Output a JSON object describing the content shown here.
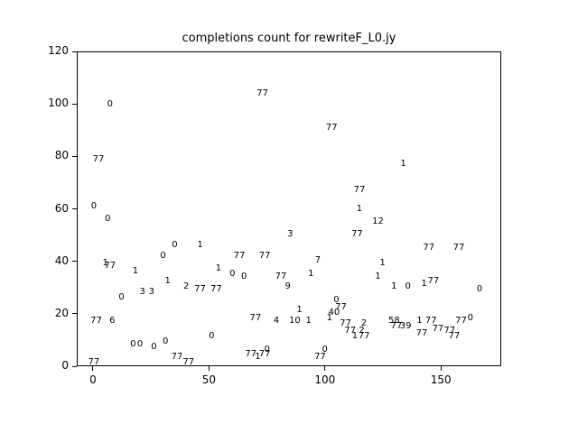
{
  "chart_data": {
    "type": "scatter",
    "title": "completions count for rewriteF_L0.jy",
    "xlabel": "",
    "ylabel": "",
    "marker": "text-label",
    "grid": false,
    "legend": "none",
    "xlim": [
      -7,
      176
    ],
    "ylim": [
      0,
      120
    ],
    "xticks": [
      0,
      50,
      100,
      150
    ],
    "yticks": [
      0,
      20,
      40,
      60,
      80,
      100,
      120
    ],
    "colors": {
      "background": "#ffffff",
      "axes": "#000000",
      "text": "#000000"
    },
    "points": [
      {
        "x": 0,
        "y": 61,
        "label": "0"
      },
      {
        "x": 2,
        "y": 79,
        "label": "77"
      },
      {
        "x": 5,
        "y": 39,
        "label": "1"
      },
      {
        "x": 7,
        "y": 38,
        "label": "77"
      },
      {
        "x": 6,
        "y": 56,
        "label": "0"
      },
      {
        "x": 7,
        "y": 100,
        "label": "0"
      },
      {
        "x": 1,
        "y": 17,
        "label": "77"
      },
      {
        "x": 8,
        "y": 17,
        "label": "6"
      },
      {
        "x": 12,
        "y": 26,
        "label": "0"
      },
      {
        "x": 0,
        "y": 1,
        "label": "77"
      },
      {
        "x": 18,
        "y": 36,
        "label": "1"
      },
      {
        "x": 21,
        "y": 28,
        "label": "3"
      },
      {
        "x": 25,
        "y": 28,
        "label": "3"
      },
      {
        "x": 17,
        "y": 8,
        "label": "0"
      },
      {
        "x": 20,
        "y": 8,
        "label": "0"
      },
      {
        "x": 26,
        "y": 7,
        "label": "0"
      },
      {
        "x": 31,
        "y": 9,
        "label": "0"
      },
      {
        "x": 30,
        "y": 42,
        "label": "0"
      },
      {
        "x": 32,
        "y": 32,
        "label": "1"
      },
      {
        "x": 35,
        "y": 46,
        "label": "0"
      },
      {
        "x": 36,
        "y": 3,
        "label": "77"
      },
      {
        "x": 41,
        "y": 1,
        "label": "77"
      },
      {
        "x": 40,
        "y": 30,
        "label": "2"
      },
      {
        "x": 46,
        "y": 29,
        "label": "77"
      },
      {
        "x": 53,
        "y": 29,
        "label": "77"
      },
      {
        "x": 46,
        "y": 46,
        "label": "1"
      },
      {
        "x": 54,
        "y": 37,
        "label": "1"
      },
      {
        "x": 51,
        "y": 11,
        "label": "0"
      },
      {
        "x": 60,
        "y": 35,
        "label": "0"
      },
      {
        "x": 63,
        "y": 42,
        "label": "77"
      },
      {
        "x": 65,
        "y": 34,
        "label": "0"
      },
      {
        "x": 74,
        "y": 42,
        "label": "77"
      },
      {
        "x": 73,
        "y": 104,
        "label": "77"
      },
      {
        "x": 68,
        "y": 4,
        "label": "77"
      },
      {
        "x": 71,
        "y": 3,
        "label": "1"
      },
      {
        "x": 75,
        "y": 6,
        "label": "0"
      },
      {
        "x": 74,
        "y": 4,
        "label": "77"
      },
      {
        "x": 70,
        "y": 18,
        "label": "77"
      },
      {
        "x": 79,
        "y": 17,
        "label": "4"
      },
      {
        "x": 81,
        "y": 34,
        "label": "77"
      },
      {
        "x": 84,
        "y": 30,
        "label": "9"
      },
      {
        "x": 85,
        "y": 50,
        "label": "3"
      },
      {
        "x": 89,
        "y": 21,
        "label": "1"
      },
      {
        "x": 87,
        "y": 17,
        "label": "10"
      },
      {
        "x": 93,
        "y": 17,
        "label": "1"
      },
      {
        "x": 94,
        "y": 35,
        "label": "1"
      },
      {
        "x": 97,
        "y": 40,
        "label": "7"
      },
      {
        "x": 98,
        "y": 3,
        "label": "77"
      },
      {
        "x": 100,
        "y": 6,
        "label": "0"
      },
      {
        "x": 103,
        "y": 91,
        "label": "77"
      },
      {
        "x": 105,
        "y": 25,
        "label": "0"
      },
      {
        "x": 104,
        "y": 20,
        "label": "40"
      },
      {
        "x": 107,
        "y": 22,
        "label": "77"
      },
      {
        "x": 102,
        "y": 18,
        "label": "1"
      },
      {
        "x": 109,
        "y": 16,
        "label": "77"
      },
      {
        "x": 117,
        "y": 16,
        "label": "2"
      },
      {
        "x": 111,
        "y": 13,
        "label": "77"
      },
      {
        "x": 116,
        "y": 13,
        "label": "2"
      },
      {
        "x": 113,
        "y": 11,
        "label": "1"
      },
      {
        "x": 117,
        "y": 11,
        "label": "77"
      },
      {
        "x": 114,
        "y": 50,
        "label": "77"
      },
      {
        "x": 115,
        "y": 67,
        "label": "77"
      },
      {
        "x": 115,
        "y": 60,
        "label": "1"
      },
      {
        "x": 123,
        "y": 55,
        "label": "12"
      },
      {
        "x": 123,
        "y": 34,
        "label": "1"
      },
      {
        "x": 125,
        "y": 39,
        "label": "1"
      },
      {
        "x": 130,
        "y": 30,
        "label": "1"
      },
      {
        "x": 136,
        "y": 30,
        "label": "0"
      },
      {
        "x": 134,
        "y": 77,
        "label": "1"
      },
      {
        "x": 130,
        "y": 17,
        "label": "58"
      },
      {
        "x": 131,
        "y": 15,
        "label": "77"
      },
      {
        "x": 135,
        "y": 15,
        "label": "39"
      },
      {
        "x": 141,
        "y": 17,
        "label": "1"
      },
      {
        "x": 143,
        "y": 31,
        "label": "1"
      },
      {
        "x": 147,
        "y": 32,
        "label": "77"
      },
      {
        "x": 145,
        "y": 45,
        "label": "77"
      },
      {
        "x": 158,
        "y": 45,
        "label": "77"
      },
      {
        "x": 146,
        "y": 17,
        "label": "77"
      },
      {
        "x": 149,
        "y": 14,
        "label": "77"
      },
      {
        "x": 142,
        "y": 12,
        "label": "77"
      },
      {
        "x": 154,
        "y": 13,
        "label": "77"
      },
      {
        "x": 156,
        "y": 11,
        "label": "77"
      },
      {
        "x": 159,
        "y": 17,
        "label": "77"
      },
      {
        "x": 163,
        "y": 18,
        "label": "0"
      },
      {
        "x": 167,
        "y": 29,
        "label": "0"
      }
    ]
  }
}
